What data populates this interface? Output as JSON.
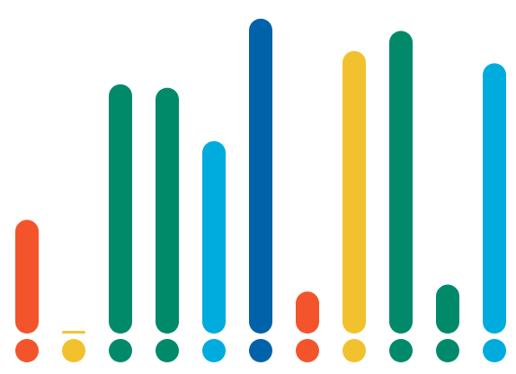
{
  "chart_data": {
    "type": "bar",
    "categories": [
      "",
      "",
      "",
      "",
      "",
      "",
      "",
      "",
      "",
      "",
      ""
    ],
    "values": [
      130,
      3,
      285,
      281,
      220,
      360,
      48,
      323,
      346,
      56,
      309
    ],
    "ylim": [
      0,
      370
    ],
    "grid": false,
    "legend": "none",
    "title": "",
    "xlabel": "",
    "ylabel": "",
    "bar_colors": [
      "#f4542b",
      "#f2c12e",
      "#008a6a",
      "#008a6a",
      "#00acde",
      "#0062a8",
      "#f4542b",
      "#f2c12e",
      "#008a6a",
      "#008a6a",
      "#00acde"
    ],
    "marker_colors": [
      "#f4542b",
      "#f2c12e",
      "#008a6a",
      "#008a6a",
      "#00acde",
      "#0062a8",
      "#f4542b",
      "#f2c12e",
      "#008a6a",
      "#008a6a",
      "#00acde"
    ]
  }
}
